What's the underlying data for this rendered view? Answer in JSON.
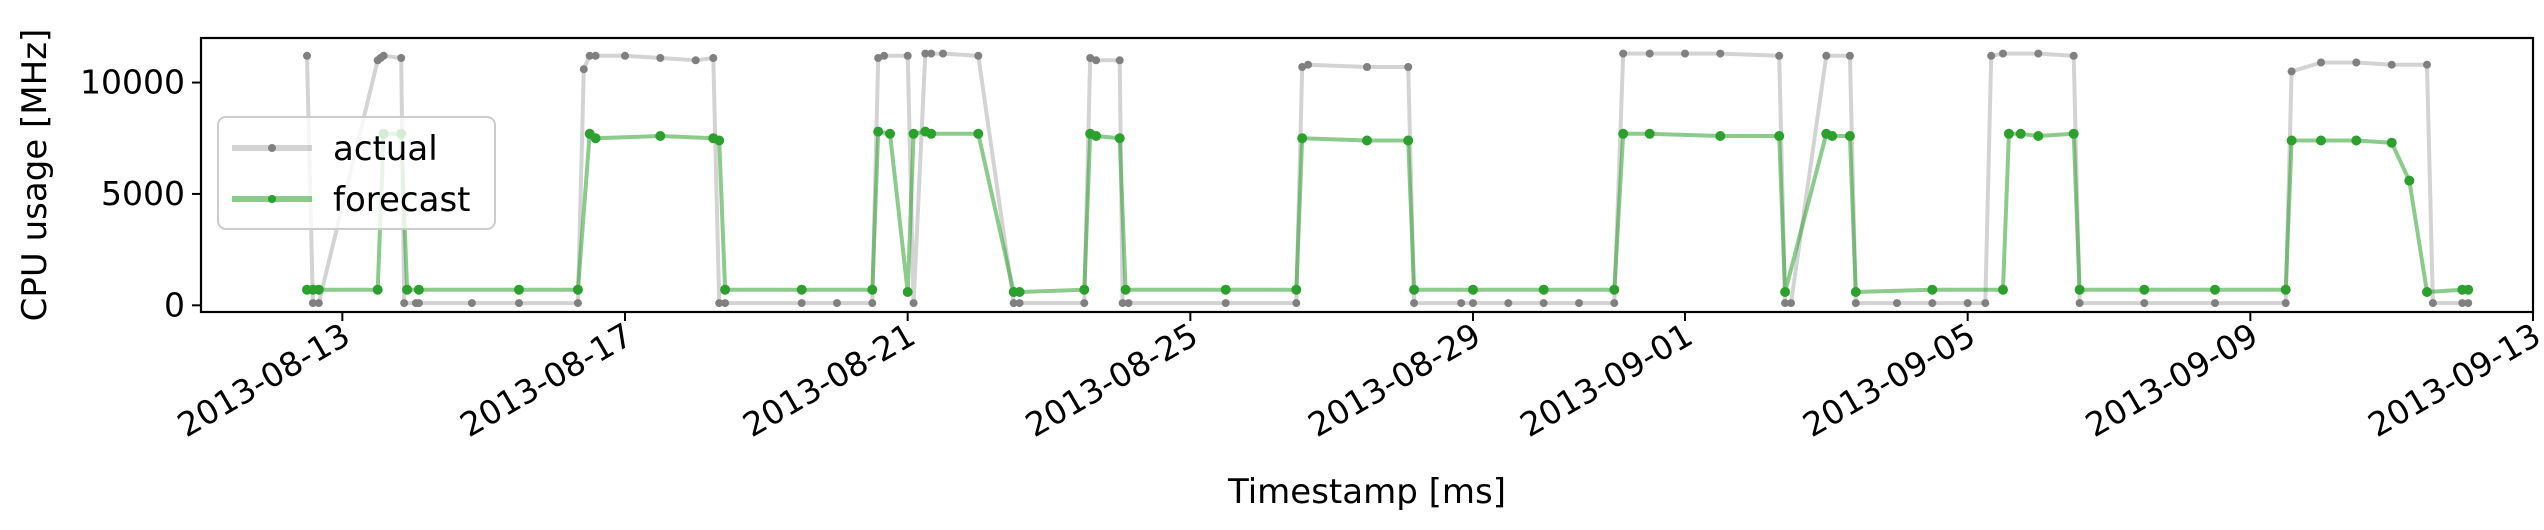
{
  "chart_data": {
    "type": "line",
    "xlabel": "Timestamp [ms]",
    "ylabel": "CPU usage [MHz]",
    "x_ticks": [
      "2013-08-13",
      "2013-08-17",
      "2013-08-21",
      "2013-08-25",
      "2013-08-29",
      "2013-09-01",
      "2013-09-05",
      "2013-09-09",
      "2013-09-13"
    ],
    "y_ticks": [
      0,
      5000,
      10000
    ],
    "xlim": [
      "2013-08-11T00:00",
      "2013-09-13T00:00"
    ],
    "ylim": [
      -300,
      12000
    ],
    "legend_position": "center-left",
    "grid": false,
    "series": [
      {
        "name": "actual",
        "color": "#808080",
        "x": [
          "2013-08-12T12:00",
          "2013-08-12T14:00",
          "2013-08-12T16:00",
          "2013-08-13T12:00",
          "2013-08-13T13:00",
          "2013-08-13T14:00",
          "2013-08-13T20:00",
          "2013-08-13T21:00",
          "2013-08-14T01:00",
          "2013-08-14T02:00",
          "2013-08-14T20:00",
          "2013-08-15T12:00",
          "2013-08-16T08:00",
          "2013-08-16T10:00",
          "2013-08-16T12:00",
          "2013-08-16T14:00",
          "2013-08-17T00:00",
          "2013-08-17T12:00",
          "2013-08-18T00:00",
          "2013-08-18T06:00",
          "2013-08-18T08:00",
          "2013-08-18T10:00",
          "2013-08-19T12:00",
          "2013-08-20T00:00",
          "2013-08-20T12:00",
          "2013-08-20T14:00",
          "2013-08-20T16:00",
          "2013-08-21T00:00",
          "2013-08-21T02:00",
          "2013-08-21T06:00",
          "2013-08-21T08:00",
          "2013-08-21T12:00",
          "2013-08-22T00:00",
          "2013-08-22T12:00",
          "2013-08-22T14:00",
          "2013-08-23T12:00",
          "2013-08-23T14:00",
          "2013-08-23T16:00",
          "2013-08-24T00:00",
          "2013-08-24T01:00",
          "2013-08-24T03:00",
          "2013-08-25T12:00",
          "2013-08-26T12:00",
          "2013-08-26T14:00",
          "2013-08-26T16:00",
          "2013-08-27T12:00",
          "2013-08-28T02:00",
          "2013-08-28T04:00",
          "2013-08-28T20:00",
          "2013-08-29T00:00",
          "2013-08-29T12:00",
          "2013-08-30T00:00",
          "2013-08-30T12:00",
          "2013-08-31T00:00",
          "2013-08-31T03:00",
          "2013-08-31T12:00",
          "2013-09-01T00:00",
          "2013-09-01T12:00",
          "2013-09-02T08:00",
          "2013-09-02T10:00",
          "2013-09-02T12:00",
          "2013-09-03T00:00",
          "2013-09-03T08:00",
          "2013-09-03T10:00",
          "2013-09-04T00:00",
          "2013-09-04T12:00",
          "2013-09-05T00:00",
          "2013-09-05T06:00",
          "2013-09-05T08:00",
          "2013-09-05T12:00",
          "2013-09-06T00:00",
          "2013-09-06T12:00",
          "2013-09-06T14:00",
          "2013-09-07T12:00",
          "2013-09-08T12:00",
          "2013-09-09T12:00",
          "2013-09-09T14:00",
          "2013-09-10T00:00",
          "2013-09-10T12:00",
          "2013-09-11T00:00",
          "2013-09-11T12:00",
          "2013-09-11T14:00",
          "2013-09-12T00:00",
          "2013-09-12T02:00"
        ],
        "y": [
          11200,
          100,
          100,
          11000,
          11100,
          11200,
          11100,
          100,
          100,
          100,
          100,
          100,
          100,
          10600,
          11200,
          11200,
          11200,
          11100,
          11000,
          11100,
          100,
          100,
          100,
          100,
          100,
          11100,
          11200,
          11200,
          100,
          11300,
          11300,
          11300,
          11200,
          100,
          100,
          100,
          11100,
          11000,
          11000,
          100,
          100,
          100,
          100,
          10700,
          10800,
          10700,
          10700,
          100,
          100,
          100,
          100,
          100,
          100,
          100,
          11300,
          11300,
          11300,
          11300,
          11200,
          100,
          100,
          11200,
          11200,
          100,
          100,
          100,
          100,
          100,
          11200,
          11300,
          11300,
          11200,
          100,
          100,
          100,
          100,
          10500,
          10900,
          10900,
          10800,
          10800,
          100,
          100,
          100
        ]
      },
      {
        "name": "forecast",
        "color": "#2ca02c",
        "x": [
          "2013-08-12T12:00",
          "2013-08-12T14:00",
          "2013-08-12T16:00",
          "2013-08-13T12:00",
          "2013-08-13T14:00",
          "2013-08-13T20:00",
          "2013-08-13T22:00",
          "2013-08-14T02:00",
          "2013-08-15T12:00",
          "2013-08-16T08:00",
          "2013-08-16T12:00",
          "2013-08-16T14:00",
          "2013-08-17T12:00",
          "2013-08-18T06:00",
          "2013-08-18T08:00",
          "2013-08-18T10:00",
          "2013-08-19T12:00",
          "2013-08-20T12:00",
          "2013-08-20T14:00",
          "2013-08-20T18:00",
          "2013-08-21T00:00",
          "2013-08-21T02:00",
          "2013-08-21T06:00",
          "2013-08-21T08:00",
          "2013-08-22T00:00",
          "2013-08-22T12:00",
          "2013-08-22T14:00",
          "2013-08-23T12:00",
          "2013-08-23T14:00",
          "2013-08-23T16:00",
          "2013-08-24T00:00",
          "2013-08-24T02:00",
          "2013-08-25T12:00",
          "2013-08-26T12:00",
          "2013-08-26T14:00",
          "2013-08-27T12:00",
          "2013-08-28T02:00",
          "2013-08-28T04:00",
          "2013-08-29T00:00",
          "2013-08-30T00:00",
          "2013-08-31T00:00",
          "2013-08-31T03:00",
          "2013-08-31T12:00",
          "2013-09-01T12:00",
          "2013-09-02T08:00",
          "2013-09-02T10:00",
          "2013-09-03T00:00",
          "2013-09-03T02:00",
          "2013-09-03T08:00",
          "2013-09-03T10:00",
          "2013-09-04T12:00",
          "2013-09-05T12:00",
          "2013-09-05T14:00",
          "2013-09-05T18:00",
          "2013-09-06T00:00",
          "2013-09-06T12:00",
          "2013-09-06T14:00",
          "2013-09-07T12:00",
          "2013-09-08T12:00",
          "2013-09-09T12:00",
          "2013-09-09T14:00",
          "2013-09-10T00:00",
          "2013-09-10T12:00",
          "2013-09-11T00:00",
          "2013-09-11T06:00",
          "2013-09-11T12:00",
          "2013-09-12T00:00",
          "2013-09-12T02:00"
        ],
        "y": [
          700,
          700,
          700,
          700,
          7700,
          7700,
          700,
          700,
          700,
          700,
          7700,
          7500,
          7600,
          7500,
          7400,
          700,
          700,
          700,
          7800,
          7700,
          600,
          7700,
          7800,
          7700,
          7700,
          600,
          600,
          700,
          7700,
          7600,
          7500,
          700,
          700,
          700,
          7500,
          7400,
          7400,
          700,
          700,
          700,
          700,
          7700,
          7700,
          7600,
          7600,
          600,
          7700,
          7600,
          7600,
          600,
          700,
          700,
          7700,
          7700,
          7600,
          7700,
          700,
          700,
          700,
          700,
          7400,
          7400,
          7400,
          7300,
          5600,
          600,
          700,
          700
        ]
      }
    ]
  }
}
